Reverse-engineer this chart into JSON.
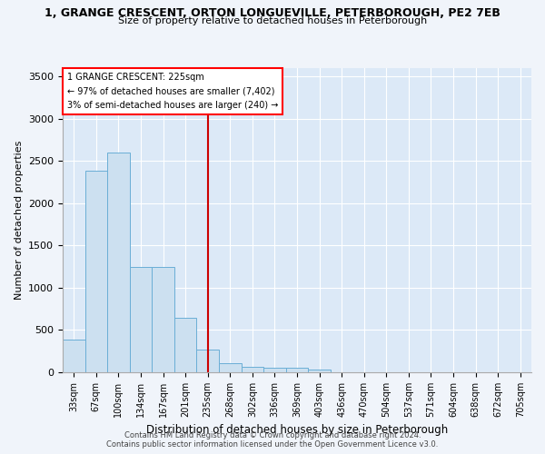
{
  "title1": "1, GRANGE CRESCENT, ORTON LONGUEVILLE, PETERBOROUGH, PE2 7EB",
  "title2": "Size of property relative to detached houses in Peterborough",
  "xlabel": "Distribution of detached houses by size in Peterborough",
  "ylabel": "Number of detached properties",
  "categories": [
    "33sqm",
    "67sqm",
    "100sqm",
    "134sqm",
    "167sqm",
    "201sqm",
    "235sqm",
    "268sqm",
    "302sqm",
    "336sqm",
    "369sqm",
    "403sqm",
    "436sqm",
    "470sqm",
    "504sqm",
    "537sqm",
    "571sqm",
    "604sqm",
    "638sqm",
    "672sqm",
    "705sqm"
  ],
  "values": [
    390,
    2390,
    2600,
    1250,
    1250,
    640,
    270,
    110,
    60,
    55,
    50,
    35,
    0,
    0,
    0,
    0,
    0,
    0,
    0,
    0,
    0
  ],
  "bar_color_fill": "#cce0f0",
  "bar_color_edge": "#6aaed6",
  "background_color": "#dce9f7",
  "grid_color": "#ffffff",
  "vline_x_idx": 6,
  "vline_color": "#cc0000",
  "ylim": [
    0,
    3600
  ],
  "yticks": [
    0,
    500,
    1000,
    1500,
    2000,
    2500,
    3000,
    3500
  ],
  "annotation_line1": "1 GRANGE CRESCENT: 225sqm",
  "annotation_line2": "← 97% of detached houses are smaller (7,402)",
  "annotation_line3": "3% of semi-detached houses are larger (240) →",
  "footer1": "Contains HM Land Registry data © Crown copyright and database right 2024.",
  "footer2": "Contains public sector information licensed under the Open Government Licence v3.0."
}
